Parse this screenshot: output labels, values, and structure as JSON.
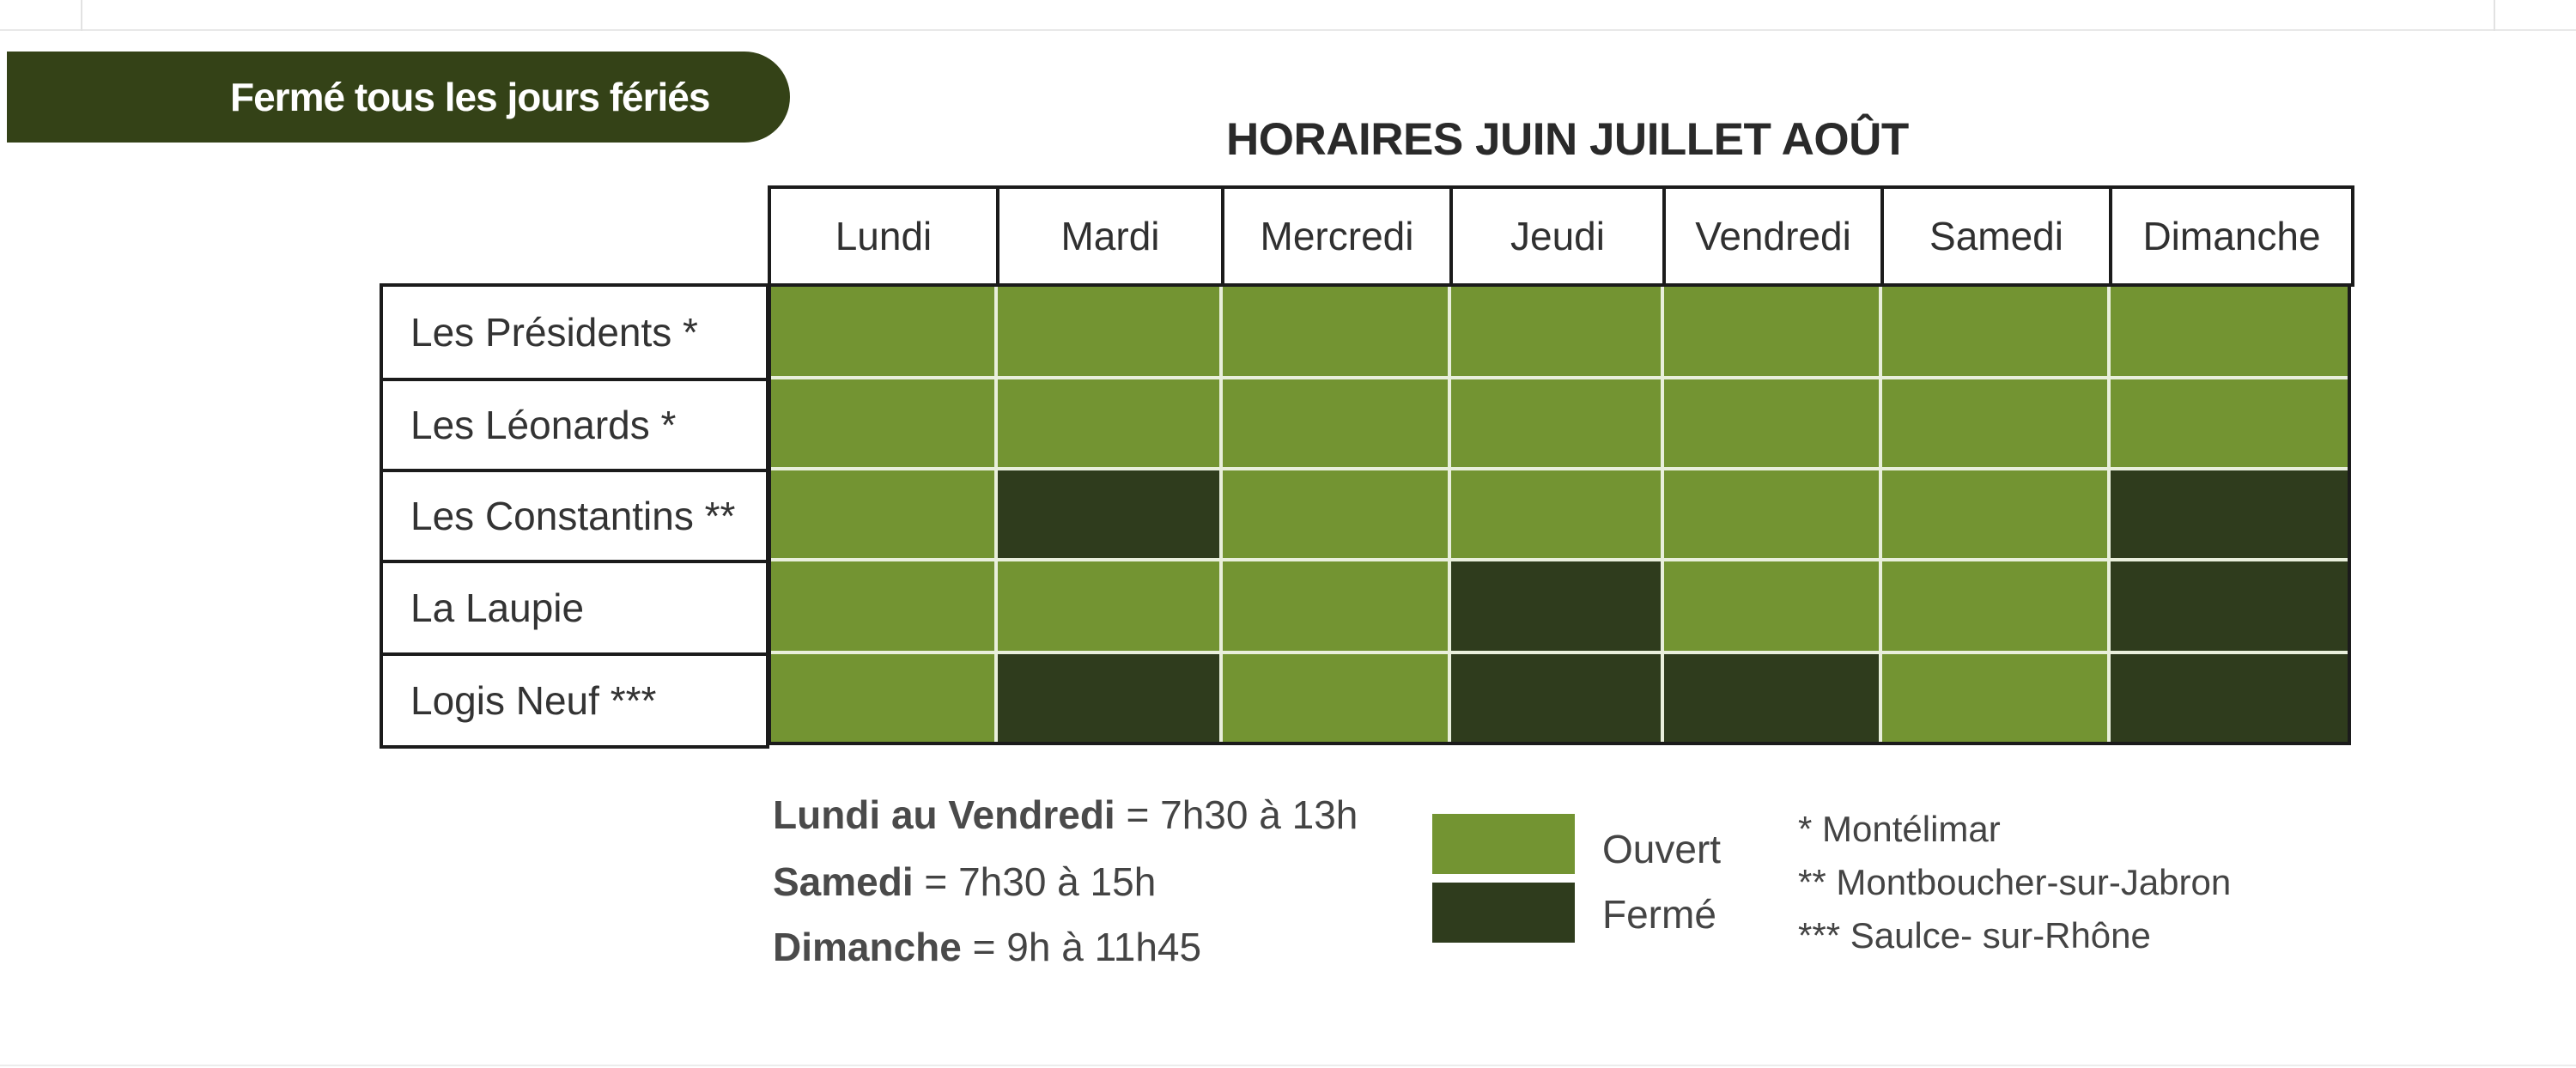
{
  "banner": "Fermé tous les jours fériés",
  "title": "HORAIRES JUIN JUILLET AOÛT",
  "days": [
    "Lundi",
    "Mardi",
    "Mercredi",
    "Jeudi",
    "Vendredi",
    "Samedi",
    "Dimanche"
  ],
  "rows": [
    {
      "label": "Les Présidents *",
      "status": [
        "open",
        "open",
        "open",
        "open",
        "open",
        "open",
        "open"
      ]
    },
    {
      "label": "Les Léonards *",
      "status": [
        "open",
        "open",
        "open",
        "open",
        "open",
        "open",
        "open"
      ]
    },
    {
      "label": "Les Constantins **",
      "status": [
        "open",
        "closed",
        "open",
        "open",
        "open",
        "open",
        "closed"
      ]
    },
    {
      "label": "La Laupie",
      "status": [
        "open",
        "open",
        "open",
        "closed",
        "open",
        "open",
        "closed"
      ]
    },
    {
      "label": "Logis Neuf ***",
      "status": [
        "open",
        "closed",
        "open",
        "closed",
        "closed",
        "open",
        "closed"
      ]
    }
  ],
  "hours": [
    {
      "day": "Lundi au Vendredi",
      "time": " = 7h30 à 13h"
    },
    {
      "day": "Samedi",
      "time": " = 7h30 à 15h"
    },
    {
      "day": "Dimanche",
      "time": " = 9h à 11h45"
    }
  ],
  "legend": {
    "open": "Ouvert",
    "closed": "Fermé",
    "open_color": "#739432",
    "closed_color": "#2f3c1d"
  },
  "notes": [
    "* Montélimar",
    "** Montboucher-sur-Jabron",
    "*** Saulce- sur-Rhône"
  ]
}
